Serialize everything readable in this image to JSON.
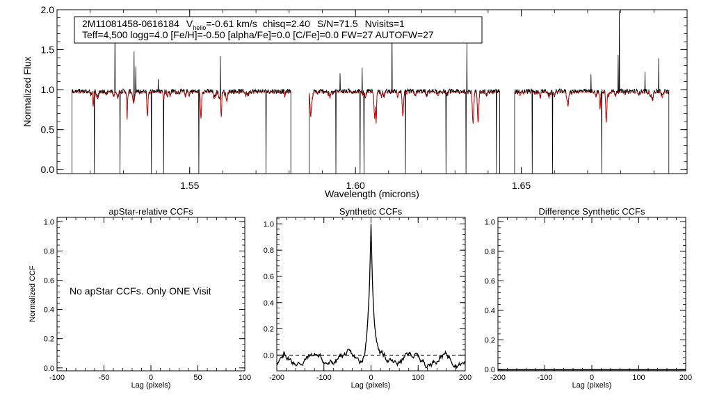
{
  "chart_data": [
    {
      "type": "line",
      "id": "spectrum",
      "info_line1": {
        "star": "2M11081458-0616184",
        "v": "V",
        "helio_sub": "helio",
        "v_value": "=-0.61 km/s",
        "chisq": "chisq=2.40",
        "sn": "S/N=71.5",
        "nvisits": "Nvisits=1"
      },
      "info_line2": "Teff=4,500 logg=4.0 [Fe/H]=-0.50 [alpha/Fe]=0.0 [C/Fe]=0.0 FW=27 AUTOFW=27",
      "xlabel": "Wavelength (microns)",
      "ylabel": "Normalized Flux",
      "xlim": [
        1.51,
        1.7
      ],
      "ylim": [
        -0.05,
        2.0
      ],
      "xticks": [
        1.55,
        1.6,
        1.65
      ],
      "xtick_labels": [
        "1.55",
        "1.60",
        "1.65"
      ],
      "yticks": [
        0.0,
        0.5,
        1.0,
        1.5,
        2.0
      ],
      "ytick_labels": [
        "0.0",
        "0.5",
        "1.0",
        "1.5",
        "2.0"
      ],
      "chip_ranges": [
        [
          1.5145,
          1.5805
        ],
        [
          1.586,
          1.6435
        ],
        [
          1.648,
          1.6945
        ]
      ],
      "continuum_level": 0.97,
      "series": [
        {
          "name": "observed",
          "color": "#000000"
        },
        {
          "name": "synthetic",
          "color": "#e00000"
        }
      ]
    },
    {
      "type": "line",
      "id": "apstar-ccf",
      "title": "apStar-relative CCFs",
      "xlabel": "Lag (pixels)",
      "ylabel": "Normalized CCF",
      "xlim": [
        -100,
        100
      ],
      "ylim": [
        -0.02,
        1.03
      ],
      "xticks": [
        -100,
        -50,
        0,
        50,
        100
      ],
      "xtick_labels": [
        "-100",
        "-50",
        "0",
        "50",
        "100"
      ],
      "yticks": [
        0.0,
        0.2,
        0.4,
        0.6,
        0.8,
        1.0
      ],
      "ytick_labels": [
        "0.0",
        "0.2",
        "0.4",
        "0.6",
        "0.8",
        "1.0"
      ],
      "annotation": "No apStar CCFs.  Only ONE Visit"
    },
    {
      "type": "line",
      "id": "synthetic-ccf",
      "title": "Synthetic CCFs",
      "xlabel": "Lag (pixels)",
      "xlim": [
        -200,
        200
      ],
      "ylim": [
        -0.12,
        1.05
      ],
      "xticks": [
        -200,
        -100,
        0,
        100,
        200
      ],
      "xtick_labels": [
        "-200",
        "-100",
        "0",
        "100",
        "200"
      ],
      "yticks": [
        0.0,
        0.2,
        0.4,
        0.6,
        0.8,
        1.0
      ],
      "ytick_labels": [
        "0.0",
        "0.2",
        "0.4",
        "0.6",
        "0.8",
        "1.0"
      ],
      "peak_lag": 0,
      "peak_value": 1.0,
      "zero_line": 0.0
    },
    {
      "type": "line",
      "id": "diff-ccf",
      "title": "Difference Synthetic CCFs",
      "xlabel": "Lag (pixels)",
      "xlim": [
        -200,
        200
      ],
      "ylim": [
        -0.01,
        1.03
      ],
      "xticks": [
        -200,
        -100,
        0,
        100,
        200
      ],
      "xtick_labels": [
        "-200",
        "-100",
        "0",
        "100",
        "200"
      ],
      "yticks": [
        0.0,
        0.2,
        0.4,
        0.6,
        0.8,
        1.0
      ],
      "ytick_labels": [
        "0.0",
        "0.2",
        "0.4",
        "0.6",
        "0.8",
        "1.0"
      ],
      "baseline": 0.0
    }
  ]
}
